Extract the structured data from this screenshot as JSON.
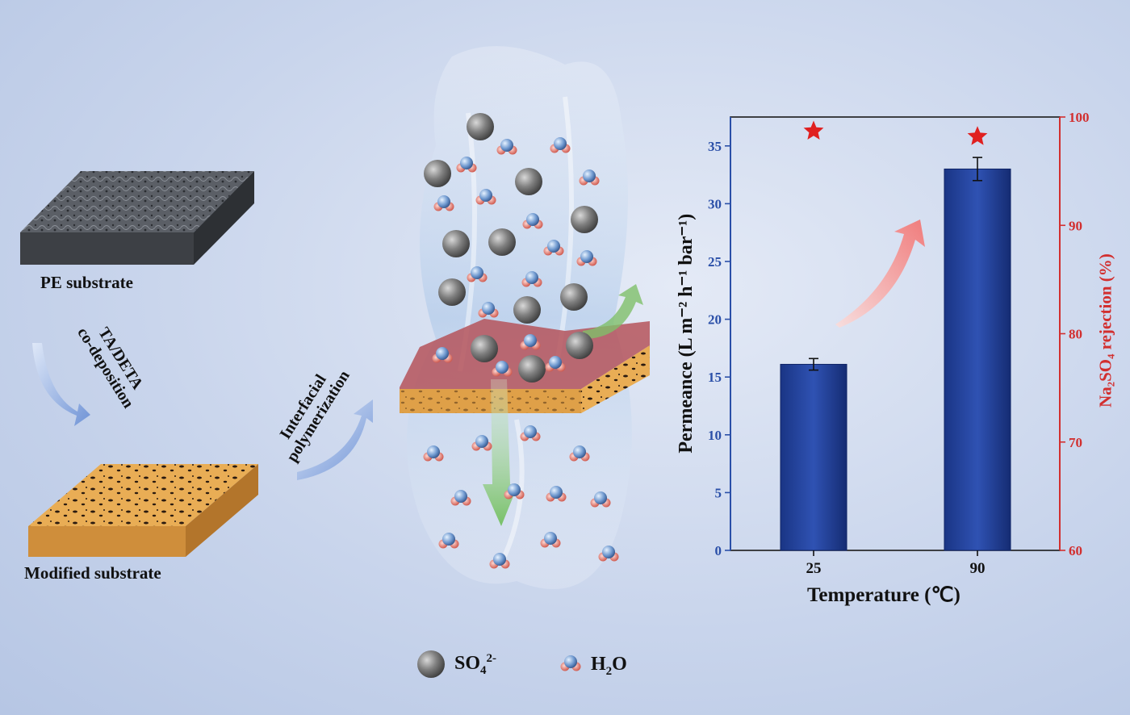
{
  "labels": {
    "pe_substrate": "PE substrate",
    "modified_substrate": "Modified substrate",
    "codeposition_line1": "TA/DETA",
    "codeposition_line2": "co-deposition",
    "ip_line1": "Interfacial",
    "ip_line2": "polymerization"
  },
  "legend": {
    "so4_base": "SO",
    "so4_sub": "4",
    "so4_sup": "2-",
    "h2o_base": "H",
    "h2o_sub": "2",
    "h2o_tail": "O"
  },
  "colors": {
    "bar": "#1f3f96",
    "left_axis": "#2a4fa8",
    "right_axis": "#d22f2f",
    "star": "#e02020",
    "substrate_top": "#f1b85c",
    "active_layer": "#b5545a"
  },
  "chart_data": {
    "type": "bar",
    "categories": [
      "25",
      "90"
    ],
    "series": [
      {
        "values": [
          16.1,
          33.0
        ],
        "errors": [
          0.5,
          1.0
        ],
        "axis": "left"
      },
      {
        "values": [
          98.7,
          98.2
        ],
        "marker": "star",
        "axis": "right"
      }
    ],
    "xlabel": "Temperature (℃)",
    "ylabel_left": "Permeance (L m⁻² h⁻¹ bar⁻¹)",
    "ylabel_right": "Na₂SO₄ rejection (%)",
    "ylim_left": [
      0,
      37.5
    ],
    "yticks_left": [
      0,
      5,
      10,
      15,
      20,
      25,
      30,
      35
    ],
    "ylim_right": [
      60,
      100
    ],
    "yticks_right": [
      60,
      70,
      80,
      90,
      100
    ],
    "grid": false
  }
}
